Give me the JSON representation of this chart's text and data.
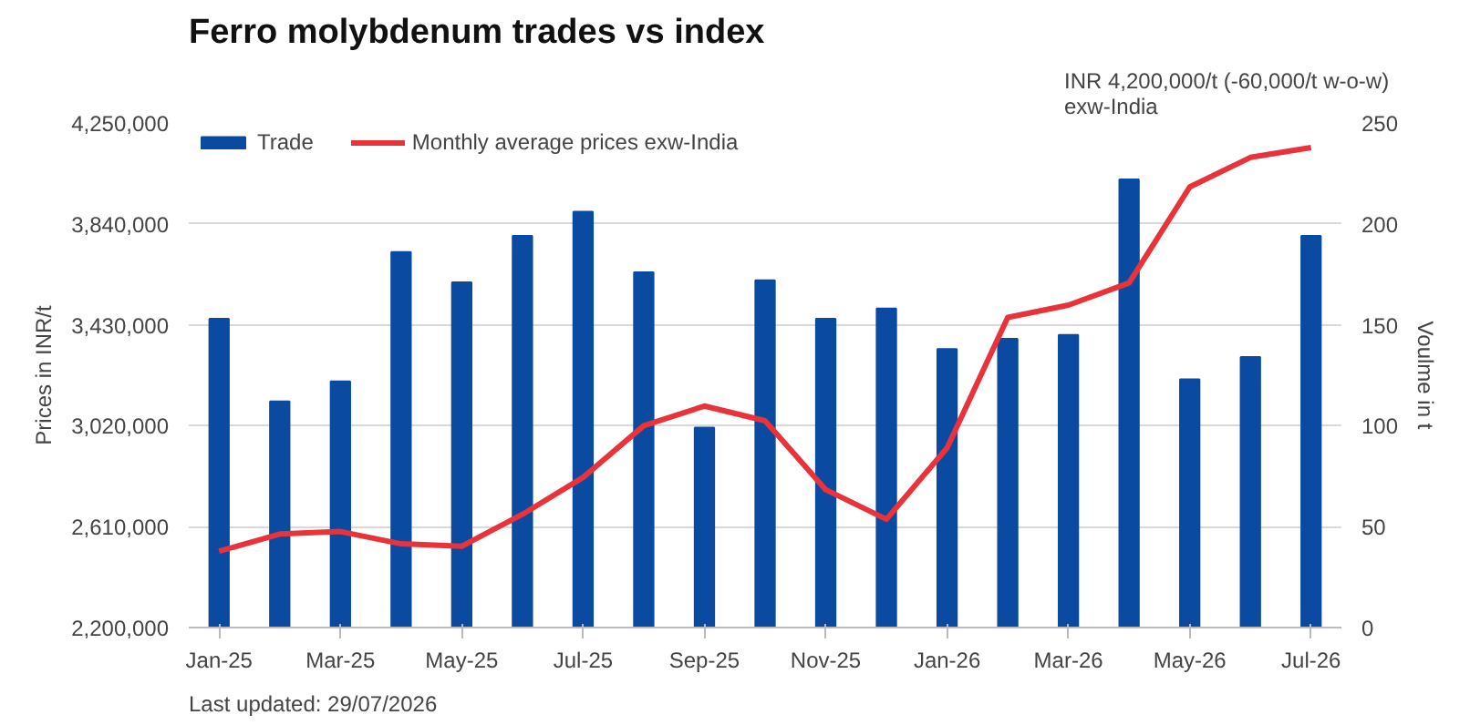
{
  "chart_data": {
    "type": "bar",
    "title": "Ferro molybdenum trades vs index",
    "categories": [
      "Jan-25",
      null,
      "Mar-25",
      null,
      "May-25",
      null,
      "Jul-25",
      null,
      "Sep-25",
      null,
      "Nov-25",
      null,
      "Jan-26",
      null,
      "Mar-26",
      null,
      "May-26",
      null,
      "Jul-26"
    ],
    "series": [
      {
        "name": "Trade",
        "axis": "y2",
        "color": "#0a4aa0",
        "values": [
          153,
          112,
          122,
          186,
          171,
          194,
          206,
          176,
          99,
          172,
          153,
          158,
          138,
          143,
          145,
          222,
          123,
          134,
          194
        ]
      },
      {
        "name": "Monthly average prices exw-India",
        "type": "line",
        "color": "#e8333a",
        "values": [
          2510000,
          2580000,
          2590000,
          2540000,
          2530000,
          2660000,
          2810000,
          3020000,
          3100000,
          3040000,
          2760000,
          2640000,
          2930000,
          3460000,
          3510000,
          3600000,
          3990000,
          4110000,
          4150000
        ]
      }
    ],
    "ylabel": "Prices in INR/t",
    "y2label": "Voulme in t",
    "ylim": [
      2200000,
      4250000
    ],
    "yticks": [
      {
        "value": 2200000,
        "label": "2,200,000"
      },
      {
        "value": 2610000,
        "label": "2,610,000"
      },
      {
        "value": 3020000,
        "label": "3,020,000"
      },
      {
        "value": 3430000,
        "label": "3,430,000"
      },
      {
        "value": 3840000,
        "label": "3,840,000"
      },
      {
        "value": 4250000,
        "label": "4,250,000"
      }
    ],
    "y2lim": [
      0,
      250
    ],
    "y2ticks": [
      0,
      50,
      100,
      150,
      200,
      250
    ],
    "grid": "y",
    "legend": "top left",
    "line_style": "solid",
    "marker": "none",
    "annotations": [
      "INR 4,200,000/t (-60,000/t w-o-w)\nexw-India",
      "Last updated: 29/07/2026"
    ]
  }
}
